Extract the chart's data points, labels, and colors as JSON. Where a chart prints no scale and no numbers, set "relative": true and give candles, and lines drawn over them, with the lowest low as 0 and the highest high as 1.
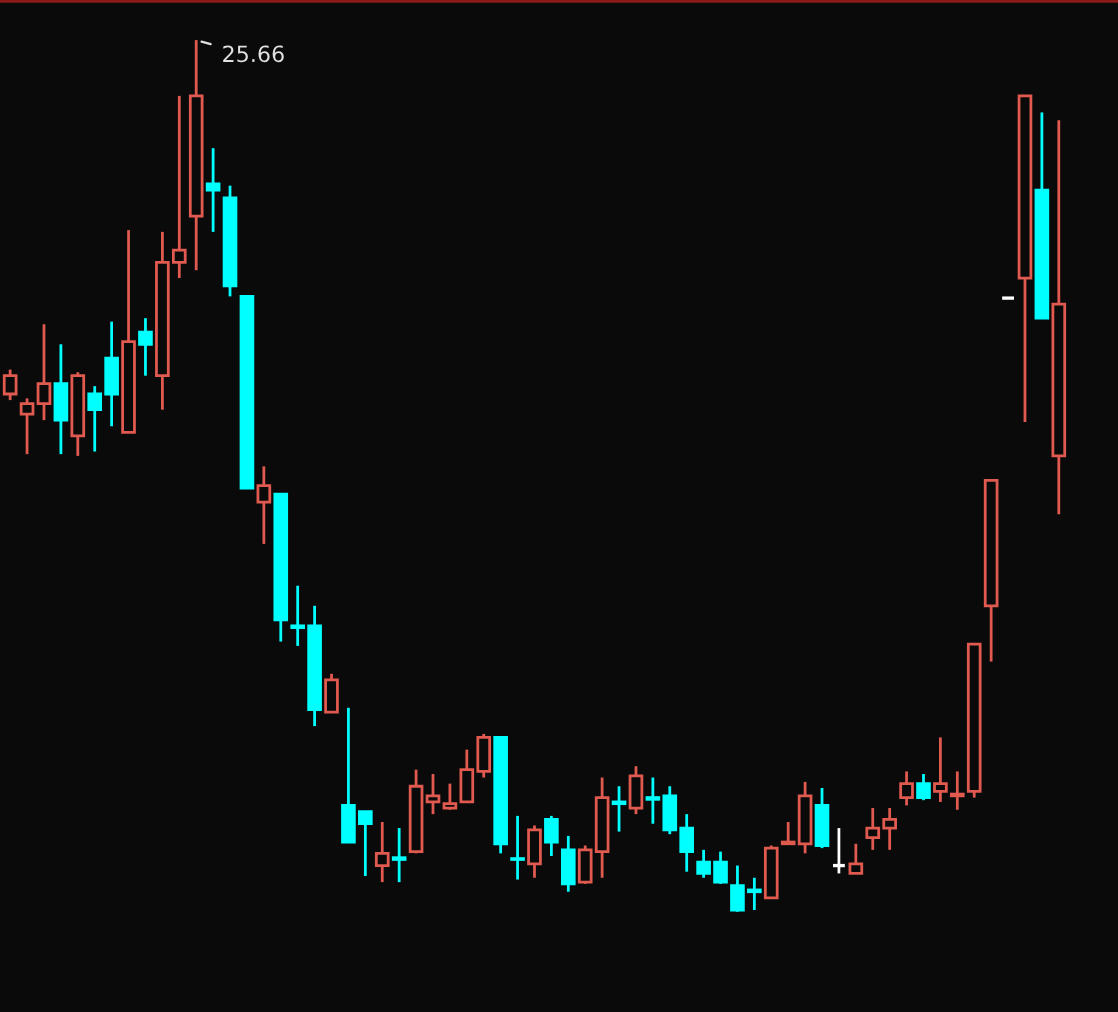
{
  "chart_data": {
    "type": "candlestick",
    "relative": true,
    "categories": [
      null,
      null,
      null,
      null,
      null,
      null,
      null,
      null,
      null,
      null,
      null,
      null,
      null,
      null,
      null,
      null,
      null,
      null,
      null,
      null,
      null,
      null,
      null,
      null,
      null,
      null,
      null,
      null,
      null,
      null,
      null,
      null,
      null,
      null,
      null,
      null,
      null,
      null,
      null,
      null,
      null,
      null,
      null,
      null,
      null,
      null,
      null,
      null,
      null,
      null,
      null,
      null,
      null,
      null,
      null,
      null,
      null,
      null,
      null,
      null,
      null,
      null,
      null
    ],
    "ohlc": [
      [
        0.594,
        0.622,
        0.587,
        0.615
      ],
      [
        0.571,
        0.589,
        0.525,
        0.583
      ],
      [
        0.583,
        0.674,
        0.564,
        0.606
      ],
      [
        0.606,
        0.651,
        0.525,
        0.564
      ],
      [
        0.546,
        0.619,
        0.523,
        0.615
      ],
      [
        0.594,
        0.603,
        0.528,
        0.576
      ],
      [
        0.635,
        0.677,
        0.557,
        0.594
      ],
      [
        0.55,
        0.782,
        0.55,
        0.654
      ],
      [
        0.665,
        0.681,
        0.615,
        0.651
      ],
      [
        0.615,
        0.78,
        0.576,
        0.745
      ],
      [
        0.745,
        0.936,
        0.727,
        0.759
      ],
      [
        0.798,
        1,
        0.736,
        0.936
      ],
      [
        0.835,
        0.876,
        0.78,
        0.828
      ],
      [
        0.819,
        0.833,
        0.706,
        0.718
      ],
      [
        0.706,
        0.706,
        0.486,
        0.486
      ],
      [
        0.47,
        0.511,
        0.422,
        0.489
      ],
      [
        0.479,
        0.479,
        0.31,
        0.335
      ],
      [
        0.328,
        0.374,
        0.305,
        0.326
      ],
      [
        0.328,
        0.351,
        0.213,
        0.232
      ],
      [
        0.229,
        0.273,
        0.229,
        0.266
      ],
      [
        0.122,
        0.234,
        0.08,
        0.08
      ],
      [
        0.115,
        0.115,
        0.041,
        0.101
      ],
      [
        0.053,
        0.103,
        0.034,
        0.067
      ],
      [
        0.062,
        0.096,
        0.034,
        0.06
      ],
      [
        0.069,
        0.163,
        0.067,
        0.144
      ],
      [
        0.126,
        0.158,
        0.112,
        0.133
      ],
      [
        0.119,
        0.147,
        0.117,
        0.124
      ],
      [
        0.126,
        0.186,
        0.126,
        0.163
      ],
      [
        0.161,
        0.204,
        0.154,
        0.2
      ],
      [
        0.2,
        0.2,
        0.067,
        0.078
      ],
      [
        0.061,
        0.11,
        0.037,
        0.06
      ],
      [
        0.055,
        0.099,
        0.039,
        0.094
      ],
      [
        0.106,
        0.11,
        0.064,
        0.08
      ],
      [
        0.071,
        0.087,
        0.023,
        0.032
      ],
      [
        0.034,
        0.076,
        0.032,
        0.071
      ],
      [
        0.069,
        0.154,
        0.039,
        0.131
      ],
      [
        0.126,
        0.144,
        0.092,
        0.124
      ],
      [
        0.119,
        0.167,
        0.112,
        0.156
      ],
      [
        0.131,
        0.154,
        0.101,
        0.129
      ],
      [
        0.133,
        0.144,
        0.089,
        0.094
      ],
      [
        0.096,
        0.112,
        0.046,
        0.069
      ],
      [
        0.057,
        0.071,
        0.039,
        0.044
      ],
      [
        0.057,
        0.069,
        0.032,
        0.034
      ],
      [
        0.03,
        0.053,
        0,
        0.002
      ],
      [
        0.025,
        0.039,
        0.002,
        0.023
      ],
      [
        0.016,
        0.076,
        0.016,
        0.073
      ],
      [
        0.078,
        0.103,
        0.078,
        0.08
      ],
      [
        0.078,
        0.149,
        0.067,
        0.133
      ],
      [
        0.122,
        0.142,
        0.073,
        0.076
      ],
      [
        0.053,
        0.096,
        0.044,
        0.053
      ],
      [
        0.044,
        0.078,
        0.044,
        0.055
      ],
      [
        0.085,
        0.119,
        0.071,
        0.096
      ],
      [
        0.096,
        0.119,
        0.071,
        0.106
      ],
      [
        0.131,
        0.161,
        0.122,
        0.147
      ],
      [
        0.147,
        0.158,
        0.128,
        0.131
      ],
      [
        0.138,
        0.2,
        0.126,
        0.147
      ],
      [
        0.133,
        0.161,
        0.117,
        0.135
      ],
      [
        0.138,
        0.307,
        0.131,
        0.307
      ],
      [
        0.351,
        0.495,
        0.287,
        0.495
      ],
      [
        0.704,
        0.704,
        0.704,
        0.704
      ],
      [
        0.727,
        0.936,
        0.562,
        0.936
      ],
      [
        0.828,
        0.917,
        0.681,
        0.681
      ],
      [
        0.523,
        0.908,
        0.456,
        0.697
      ]
    ],
    "colors": [
      "#e05a50",
      "#e05a50",
      "#e05a50",
      "#00ffff",
      "#e05a50",
      "#00ffff",
      "#00ffff",
      "#e05a50",
      "#00ffff",
      "#e05a50",
      "#e05a50",
      "#e05a50",
      "#00ffff",
      "#00ffff",
      "#00ffff",
      "#e05a50",
      "#00ffff",
      "#00ffff",
      "#00ffff",
      "#e05a50",
      "#00ffff",
      "#00ffff",
      "#e05a50",
      "#00ffff",
      "#e05a50",
      "#e05a50",
      "#e05a50",
      "#e05a50",
      "#e05a50",
      "#00ffff",
      "#00ffff",
      "#e05a50",
      "#00ffff",
      "#00ffff",
      "#e05a50",
      "#e05a50",
      "#00ffff",
      "#e05a50",
      "#00ffff",
      "#00ffff",
      "#00ffff",
      "#00ffff",
      "#00ffff",
      "#00ffff",
      "#00ffff",
      "#e05a50",
      "#e05a50",
      "#e05a50",
      "#00ffff",
      "#ffffff",
      "#e05a50",
      "#e05a50",
      "#e05a50",
      "#e05a50",
      "#00ffff",
      "#e05a50",
      "#e05a50",
      "#e05a50",
      "#e05a50",
      "#ffffff",
      "#e05a50",
      "#00ffff",
      "#e05a50"
    ],
    "annotations": [
      "25.66"
    ]
  }
}
